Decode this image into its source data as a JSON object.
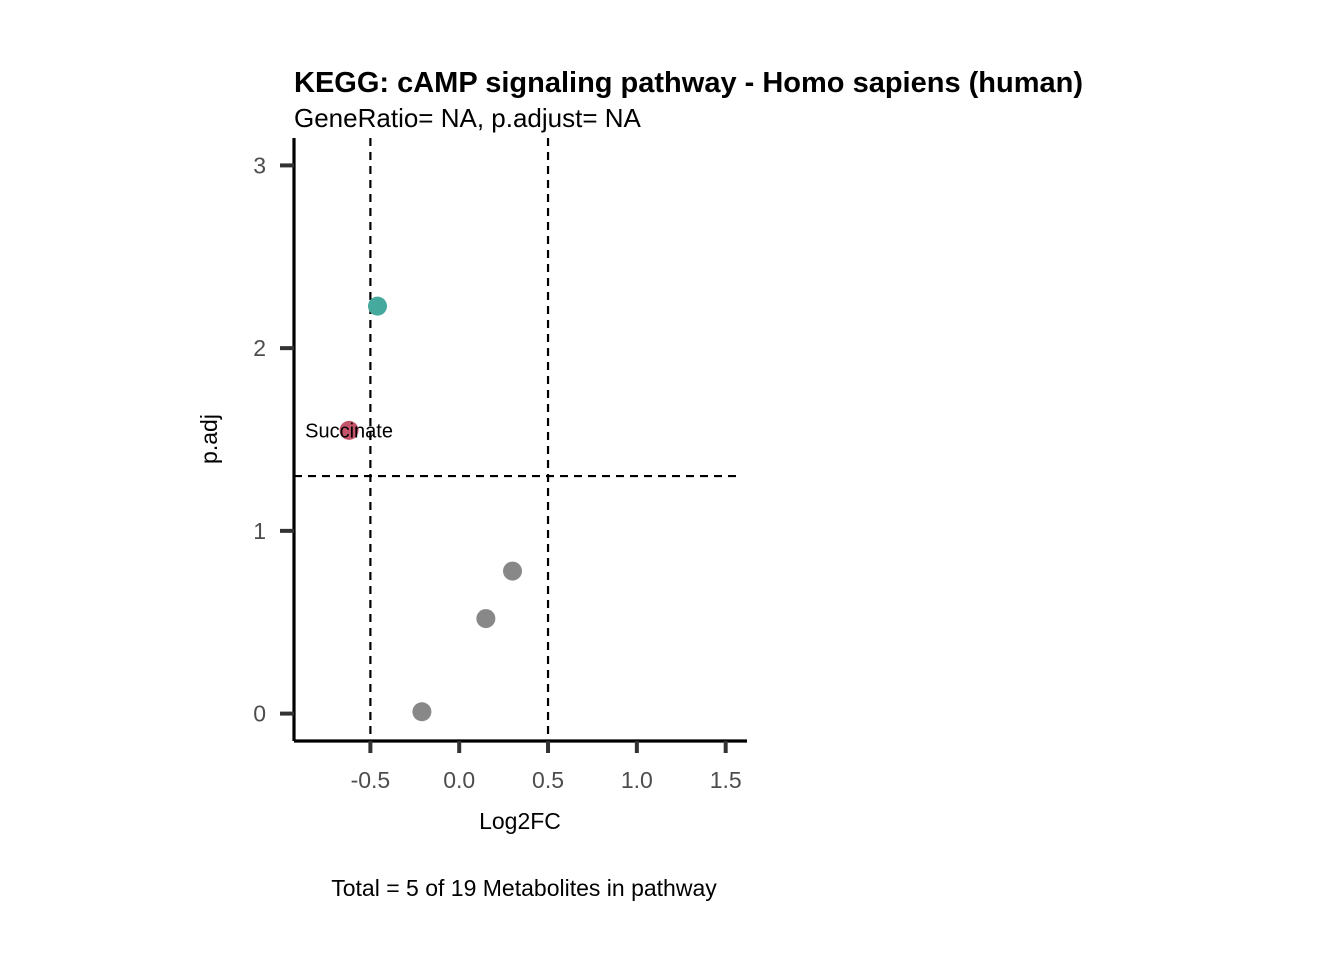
{
  "chart_data": {
    "type": "scatter",
    "title": "KEGG: cAMP signaling pathway - Homo sapiens (human)",
    "subtitle": "GeneRatio= NA, p.adjust= NA",
    "xlabel": "Log2FC",
    "ylabel": "p.adj",
    "caption": "Total = 5 of 19 Metabolites in pathway",
    "xlim": [
      -0.93,
      1.62
    ],
    "ylim": [
      -0.15,
      3.15
    ],
    "xticks": [
      -0.5,
      0.0,
      0.5,
      1.0,
      1.5
    ],
    "xtick_labels": [
      "-0.5",
      "0.0",
      "0.5",
      "1.0",
      "1.5"
    ],
    "yticks": [
      0,
      1,
      2,
      3
    ],
    "ytick_labels": [
      "0",
      "1",
      "2",
      "3"
    ],
    "grid": false,
    "reference_lines": {
      "vertical": [
        -0.5,
        0.5
      ],
      "horizontal": [
        1.3
      ],
      "style": "dashed"
    },
    "points": [
      {
        "x": -0.46,
        "y": 2.23,
        "color": "#45aa9d",
        "label": ""
      },
      {
        "x": -0.62,
        "y": 1.55,
        "color": "#c4546a",
        "label": "Succinate"
      },
      {
        "x": 0.3,
        "y": 0.78,
        "color": "#888888",
        "label": ""
      },
      {
        "x": 0.15,
        "y": 0.52,
        "color": "#888888",
        "label": ""
      },
      {
        "x": -0.21,
        "y": 0.01,
        "color": "#888888",
        "label": ""
      }
    ]
  }
}
